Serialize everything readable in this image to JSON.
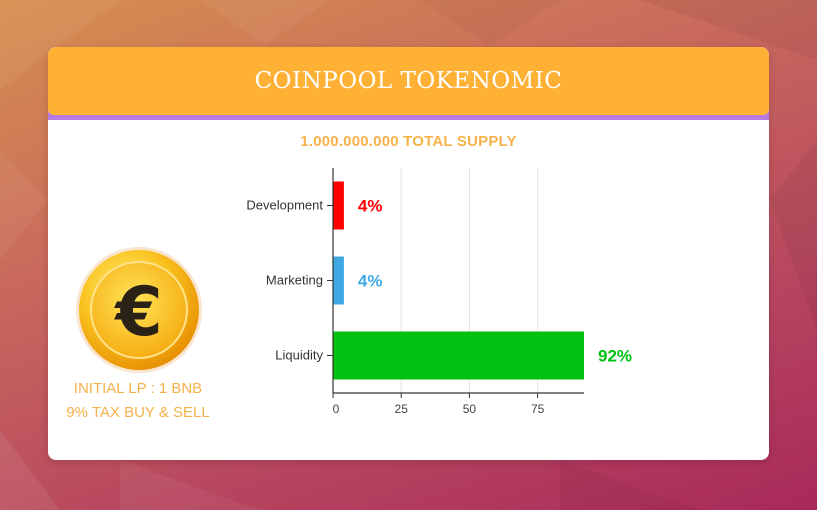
{
  "title": "COINPOOL TOKENOMIC",
  "supply": "1.000.000.000 TOTAL SUPPLY",
  "info": {
    "line1": "INITIAL LP : 1 BNB",
    "line2": "9% TAX BUY & SELL"
  },
  "colors": {
    "header": "#ffb136",
    "accent_strip": "#b57be0",
    "info_text": "#f6b24a"
  },
  "icons": {
    "coin": "euro-coin-icon"
  },
  "chart_data": {
    "type": "bar",
    "orientation": "horizontal",
    "categories": [
      "Development",
      "Marketing",
      "Liquidity"
    ],
    "values": [
      4,
      4,
      92
    ],
    "data_labels": [
      "4%",
      "4%",
      "92%"
    ],
    "colors": [
      "#ff0000",
      "#3fa9e4",
      "#00c010"
    ],
    "xlim": [
      0,
      92
    ],
    "xticks": [
      0,
      25,
      50,
      75
    ],
    "grid": true,
    "legend": "none"
  }
}
